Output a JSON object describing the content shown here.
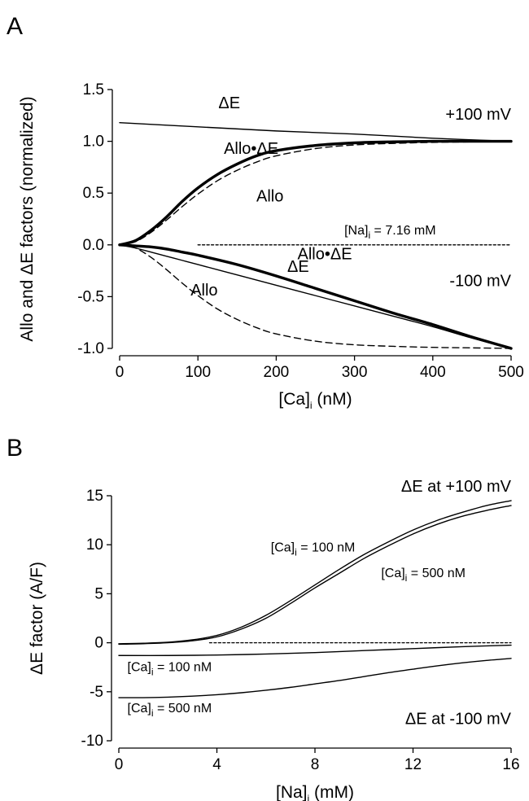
{
  "panels": [
    {
      "letter": "A",
      "chart_data": {
        "type": "line",
        "xlabel": {
          "main": "[Ca]",
          "sub": "i",
          "rest": " (nM)"
        },
        "ylabel": "Allo and ΔE factors (normalized)",
        "xlim": [
          0,
          500
        ],
        "ylim": [
          -1.0,
          1.5
        ],
        "xticks": [
          0,
          100,
          200,
          300,
          400,
          500
        ],
        "yticks": [
          -1.0,
          -0.5,
          0.0,
          0.5,
          1.0,
          1.5
        ],
        "ytick_labels": [
          "-1.0",
          "-0.5",
          "0.0",
          "0.5",
          "1.0",
          "1.5"
        ],
        "grid": false,
        "series": [
          {
            "name": "ΔE (+100 mV)",
            "style": "thin",
            "x": [
              0,
              100,
              200,
              300,
              400,
              500
            ],
            "y": [
              1.18,
              1.14,
              1.1,
              1.07,
              1.03,
              1.0
            ]
          },
          {
            "name": "Allo•ΔE (+100 mV)",
            "style": "thick",
            "x": [
              0,
              20,
              40,
              60,
              80,
              100,
              125,
              150,
              175,
              200,
              250,
              300,
              350,
              400,
              450,
              500
            ],
            "y": [
              0.0,
              0.04,
              0.14,
              0.27,
              0.42,
              0.55,
              0.68,
              0.78,
              0.86,
              0.91,
              0.96,
              0.985,
              0.995,
              1.0,
              1.0,
              1.0
            ]
          },
          {
            "name": "Allo (+100 mV)",
            "style": "dashed",
            "x": [
              0,
              20,
              40,
              60,
              80,
              100,
              125,
              150,
              175,
              200,
              250,
              300,
              350,
              400,
              450,
              500
            ],
            "y": [
              0.0,
              0.03,
              0.12,
              0.24,
              0.37,
              0.49,
              0.62,
              0.72,
              0.8,
              0.86,
              0.93,
              0.965,
              0.98,
              0.99,
              0.995,
              1.0
            ]
          },
          {
            "name": "Allo•ΔE (-100 mV)",
            "style": "thick",
            "x": [
              0,
              20,
              40,
              60,
              80,
              100,
              150,
              200,
              250,
              300,
              350,
              400,
              450,
              500
            ],
            "y": [
              0.0,
              -0.01,
              -0.02,
              -0.04,
              -0.07,
              -0.1,
              -0.19,
              -0.3,
              -0.42,
              -0.54,
              -0.66,
              -0.77,
              -0.89,
              -1.0
            ]
          },
          {
            "name": "ΔE (-100 mV)",
            "style": "thin",
            "x": [
              0,
              20,
              40,
              60,
              80,
              100,
              150,
              200,
              250,
              300,
              350,
              400,
              450,
              500
            ],
            "y": [
              0.0,
              -0.03,
              -0.07,
              -0.11,
              -0.15,
              -0.19,
              -0.29,
              -0.39,
              -0.49,
              -0.59,
              -0.69,
              -0.79,
              -0.9,
              -1.0
            ]
          },
          {
            "name": "Allo (-100 mV)",
            "style": "dashed",
            "x": [
              0,
              20,
              40,
              60,
              80,
              100,
              125,
              150,
              175,
              200,
              250,
              300,
              350,
              400,
              450,
              500
            ],
            "y": [
              0.0,
              -0.03,
              -0.12,
              -0.24,
              -0.37,
              -0.49,
              -0.62,
              -0.72,
              -0.8,
              -0.86,
              -0.93,
              -0.965,
              -0.98,
              -0.99,
              -0.995,
              -1.0
            ]
          },
          {
            "name": "zero reference",
            "style": "dotted",
            "x": [
              100,
              500
            ],
            "y": [
              0.0,
              0.0
            ]
          }
        ],
        "annotations": [
          {
            "text": "ΔE",
            "x": 140,
            "y": 1.32,
            "cls": "curve-label",
            "anchor": "middle"
          },
          {
            "text": "+100 mV",
            "x": 500,
            "y": 1.21,
            "cls": "curve-label",
            "anchor": "end"
          },
          {
            "text": "Allo•ΔE",
            "x": 168,
            "y": 0.88,
            "cls": "curve-label",
            "anchor": "middle"
          },
          {
            "text": "Allo",
            "x": 192,
            "y": 0.42,
            "cls": "curve-label",
            "anchor": "middle"
          },
          {
            "text": "[Na]",
            "sub": "i",
            "rest": " = 7.16 mM",
            "x": 287,
            "y": 0.1,
            "cls": "conc-label",
            "anchor": "start"
          },
          {
            "text": "Allo•ΔE",
            "x": 262,
            "y": -0.14,
            "cls": "curve-label",
            "anchor": "middle"
          },
          {
            "text": "ΔE",
            "x": 228,
            "y": -0.26,
            "cls": "curve-label",
            "anchor": "middle"
          },
          {
            "text": "-100 mV",
            "x": 500,
            "y": -0.4,
            "cls": "curve-label",
            "anchor": "end"
          },
          {
            "text": "Allo",
            "x": 108,
            "y": -0.49,
            "cls": "curve-label",
            "anchor": "middle"
          }
        ]
      }
    },
    {
      "letter": "B",
      "chart_data": {
        "type": "line",
        "xlabel": {
          "main": "[Na]",
          "sub": "i",
          "rest": " (mM)"
        },
        "ylabel": "ΔE factor (A/F)",
        "xlim": [
          0,
          16
        ],
        "ylim": [
          -10,
          15
        ],
        "xticks": [
          0,
          4,
          8,
          12,
          16
        ],
        "yticks": [
          -10,
          -5,
          0,
          5,
          10,
          15
        ],
        "ytick_labels": [
          "-10",
          "-5",
          "0",
          "5",
          "10",
          "15"
        ],
        "grid": false,
        "series": [
          {
            "name": "ΔE at +100 mV, [Ca]i = 100 nM",
            "style": "thin",
            "x": [
              0,
              1,
              2,
              3,
              4,
              5,
              6,
              7,
              8,
              9,
              10,
              11,
              12,
              13,
              14,
              15,
              16
            ],
            "y": [
              -0.1,
              -0.05,
              0.05,
              0.3,
              0.75,
              1.6,
              2.8,
              4.3,
              5.9,
              7.5,
              9.0,
              10.3,
              11.5,
              12.5,
              13.3,
              14.0,
              14.5
            ]
          },
          {
            "name": "ΔE at +100 mV, [Ca]i = 500 nM",
            "style": "thin",
            "x": [
              0,
              1,
              2,
              3,
              4,
              5,
              6,
              7,
              8,
              9,
              10,
              11,
              12,
              13,
              14,
              15,
              16
            ],
            "y": [
              -0.15,
              -0.1,
              0.0,
              0.2,
              0.6,
              1.4,
              2.5,
              4.0,
              5.6,
              7.1,
              8.6,
              9.9,
              11.1,
              12.1,
              12.9,
              13.5,
              14.0
            ]
          },
          {
            "name": "ΔE at -100 mV, [Ca]i = 100 nM",
            "style": "thin",
            "x": [
              0,
              2,
              4,
              6,
              8,
              10,
              12,
              14,
              16
            ],
            "y": [
              -1.3,
              -1.3,
              -1.25,
              -1.15,
              -1.0,
              -0.8,
              -0.6,
              -0.4,
              -0.25
            ]
          },
          {
            "name": "ΔE at -100 mV, [Ca]i = 500 nM",
            "style": "thin",
            "x": [
              0,
              1,
              2,
              3,
              4,
              5,
              6,
              7,
              8,
              9,
              10,
              11,
              12,
              13,
              14,
              15,
              16
            ],
            "y": [
              -5.6,
              -5.6,
              -5.55,
              -5.45,
              -5.3,
              -5.1,
              -4.85,
              -4.55,
              -4.2,
              -3.85,
              -3.45,
              -3.05,
              -2.7,
              -2.35,
              -2.05,
              -1.8,
              -1.6
            ]
          },
          {
            "name": "zero reference",
            "style": "dotted",
            "x": [
              3.7,
              16
            ],
            "y": [
              0,
              0
            ]
          }
        ],
        "annotations": [
          {
            "text": "ΔE at +100 mV",
            "x": 16,
            "y": 15.4,
            "cls": "curve-label",
            "anchor": "end"
          },
          {
            "text": "[Ca]",
            "sub": "i",
            "rest": " = 100 nM",
            "x": 6.2,
            "y": 9.3,
            "cls": "conc-label",
            "anchor": "start"
          },
          {
            "text": "[Ca]",
            "sub": "i",
            "rest": " = 500 nM",
            "x": 10.7,
            "y": 6.7,
            "cls": "conc-label",
            "anchor": "start"
          },
          {
            "text": "[Ca]",
            "sub": "i",
            "rest": " = 100 nM",
            "x": 0.35,
            "y": -2.9,
            "cls": "conc-label",
            "anchor": "start"
          },
          {
            "text": "[Ca]",
            "sub": "i",
            "rest": " = 500 nM",
            "x": 0.35,
            "y": -7.1,
            "cls": "conc-label",
            "anchor": "start"
          },
          {
            "text": "ΔE at -100 mV",
            "x": 16,
            "y": -8.3,
            "cls": "curve-label",
            "anchor": "end"
          }
        ]
      }
    }
  ]
}
